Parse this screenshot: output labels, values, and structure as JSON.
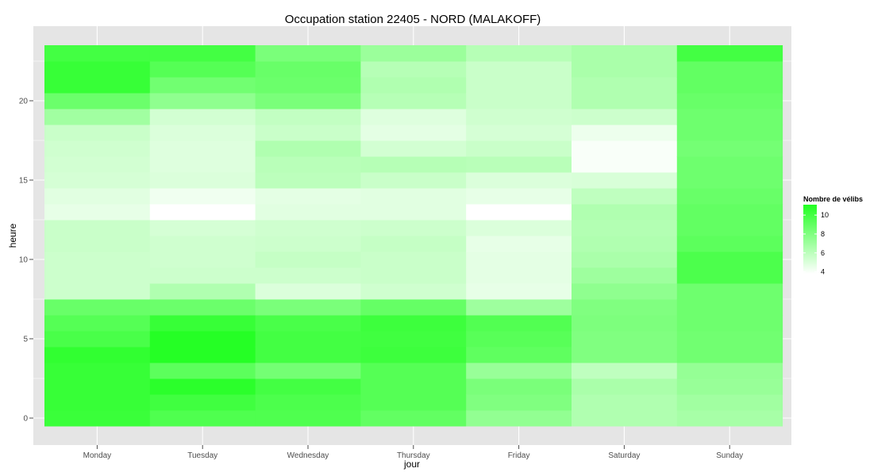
{
  "chart_data": {
    "type": "heatmap",
    "title": "Occupation station 22405 - NORD (MALAKOFF)",
    "xlabel": "jour",
    "ylabel": "heure",
    "x_categories": [
      "Monday",
      "Tuesday",
      "Wednesday",
      "Thursday",
      "Friday",
      "Saturday",
      "Sunday"
    ],
    "y_hours": [
      0,
      1,
      2,
      3,
      4,
      5,
      6,
      7,
      8,
      9,
      10,
      11,
      12,
      13,
      14,
      15,
      16,
      17,
      18,
      19,
      20,
      21,
      22,
      23
    ],
    "y_ticks": [
      0,
      5,
      10,
      15,
      20
    ],
    "ylim": [
      -0.5,
      23.5
    ],
    "grid": true,
    "color_scale": {
      "low": "#ffffff",
      "high": "#22ff22",
      "min": 3.8,
      "max": 11.1
    },
    "legend": {
      "title": "Nombre de vélibs",
      "ticks": [
        4,
        6,
        8,
        10
      ],
      "placement": "right"
    },
    "values": [
      [
        10.3,
        10.4,
        10.4,
        10.4,
        10.6,
        9.8,
        9.4,
        8.8,
        5.5,
        5.5,
        5.5,
        5.6,
        5.6,
        4.6,
        4.8,
        5.2,
        5.3,
        5.4,
        5.6,
        6.9,
        8.7,
        10.4,
        10.4,
        10.0
      ],
      [
        9.6,
        10.1,
        10.8,
        9.2,
        11.0,
        11.0,
        10.4,
        8.7,
        6.4,
        5.5,
        5.4,
        5.4,
        5.2,
        3.8,
        4.3,
        5.0,
        4.9,
        4.9,
        5.0,
        5.3,
        7.5,
        8.5,
        9.4,
        10.0
      ],
      [
        9.6,
        9.7,
        10.0,
        8.4,
        10.0,
        10.0,
        9.8,
        8.2,
        5.0,
        5.5,
        5.7,
        5.5,
        5.4,
        4.8,
        4.7,
        6.0,
        6.1,
        6.4,
        5.6,
        5.8,
        8.2,
        8.7,
        8.8,
        8.2
      ],
      [
        9.0,
        9.4,
        9.4,
        9.4,
        10.2,
        10.1,
        10.2,
        8.9,
        5.4,
        5.6,
        5.6,
        5.7,
        5.5,
        4.8,
        4.8,
        5.6,
        6.2,
        5.3,
        4.7,
        4.9,
        6.2,
        6.4,
        6.2,
        7.1
      ],
      [
        7.4,
        8.0,
        8.2,
        7.2,
        9.1,
        9.3,
        9.5,
        7.0,
        4.6,
        4.7,
        4.7,
        4.6,
        5.0,
        3.8,
        4.6,
        5.0,
        6.1,
        5.6,
        5.2,
        5.4,
        5.6,
        5.6,
        5.6,
        6.2
      ],
      [
        6.4,
        6.4,
        6.6,
        5.9,
        8.0,
        8.0,
        8.1,
        8.0,
        7.5,
        7.0,
        6.6,
        6.4,
        6.3,
        6.4,
        5.9,
        5.1,
        4.0,
        4.0,
        4.4,
        5.5,
        6.4,
        6.4,
        6.6,
        6.6
      ],
      [
        6.7,
        6.9,
        7.2,
        7.3,
        8.5,
        8.5,
        8.6,
        8.6,
        8.6,
        9.7,
        9.7,
        9.2,
        9.0,
        9.0,
        8.8,
        8.6,
        8.6,
        8.4,
        8.6,
        8.6,
        8.8,
        9.0,
        9.0,
        10.0
      ]
    ]
  }
}
